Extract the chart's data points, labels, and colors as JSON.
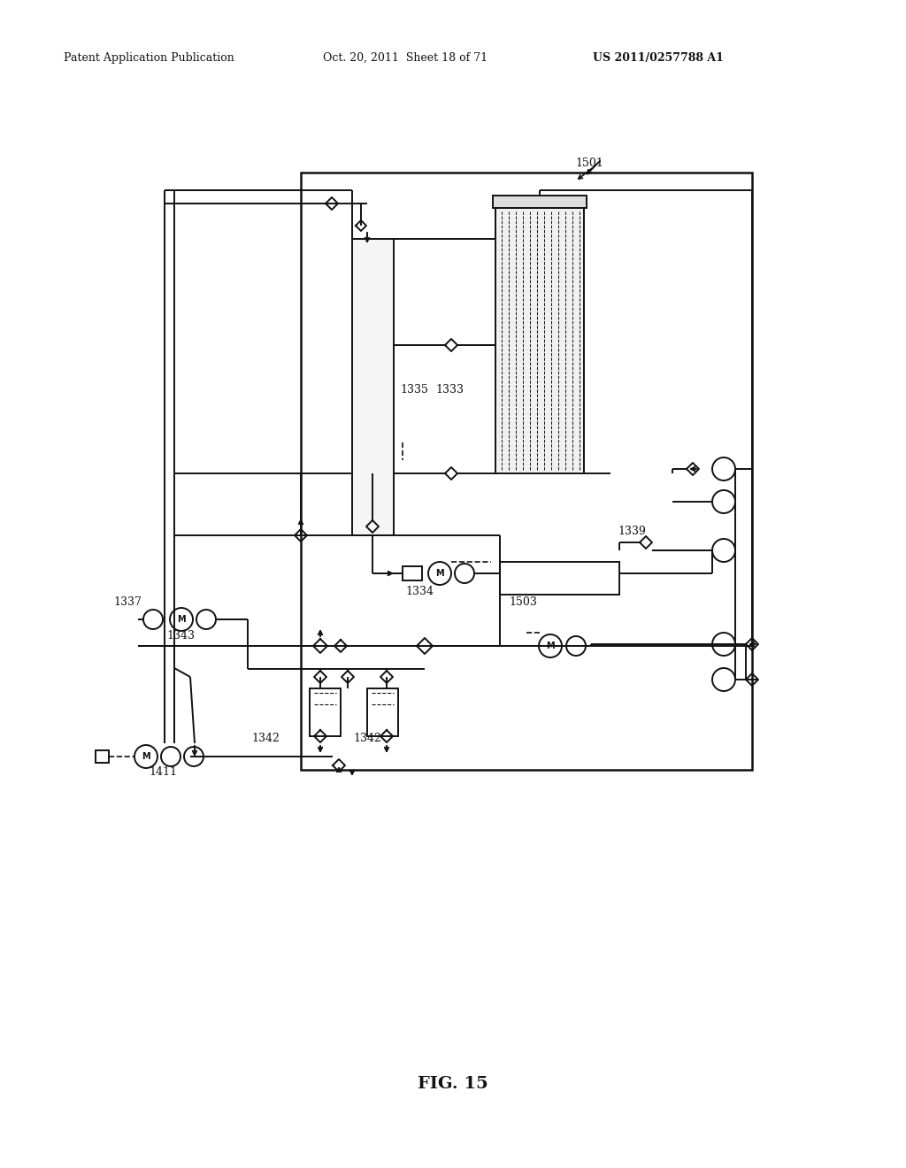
{
  "bg_color": "#ffffff",
  "line_color": "#111111",
  "header_left": "Patent Application Publication",
  "header_center": "Oct. 20, 2011  Sheet 18 of 71",
  "header_right": "US 2011/0257788 A1",
  "figure_label": "FIG. 15",
  "lw": 1.4
}
